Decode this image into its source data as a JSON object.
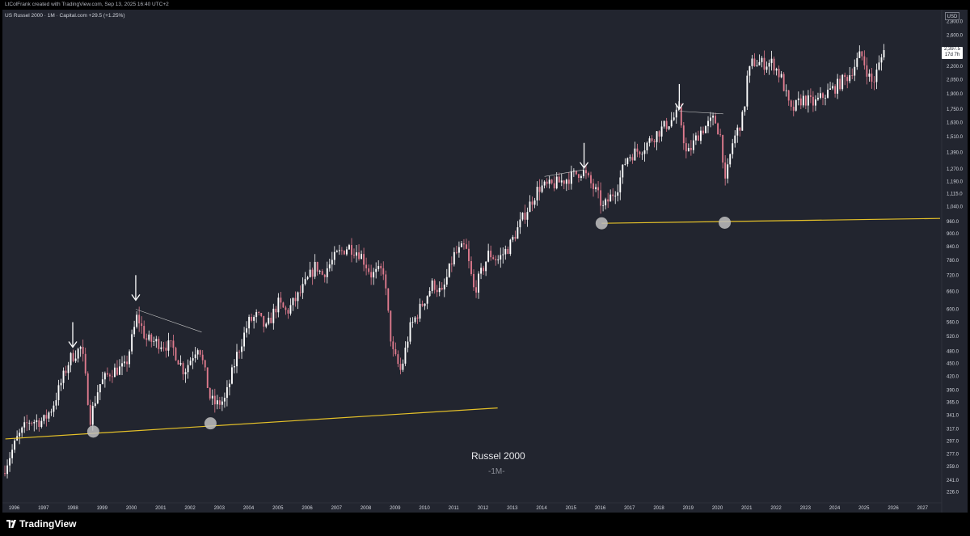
{
  "header": {
    "credit": "LtColFrank created with TradingView.com, Sep 13, 2025 16:40 UTC+2",
    "symbol_line": "US Russel 2000 · 1M · Capital.com  +29.5 (+1.25%)"
  },
  "footer": {
    "brand": "TradingView"
  },
  "axis": {
    "currency": "USD",
    "last_price": "2,397.5",
    "countdown": "17d 7h"
  },
  "annotation": {
    "title": "Russel 2000",
    "subtitle": "-1M-"
  },
  "colors": {
    "background": "#22252f",
    "up_candle": "#ffffff",
    "down_candle": "#e07b8e",
    "trendline": "#e6c229",
    "touch_marker": "#bfbfbf",
    "arrow": "#ffffff",
    "top_line": "#c9c9c9",
    "axis_text": "#d1d4dc"
  },
  "chart_data": {
    "type": "candlestick",
    "scale": "log",
    "interval": "1M",
    "xlim": [
      1995.6,
      2027.6
    ],
    "ylim": [
      215,
      2950
    ],
    "x_ticks": [
      "1996",
      "1997",
      "1998",
      "1999",
      "2000",
      "2001",
      "2002",
      "2003",
      "2004",
      "2005",
      "2006",
      "2007",
      "2008",
      "2009",
      "2010",
      "2011",
      "2012",
      "2013",
      "2014",
      "2015",
      "2016",
      "2017",
      "2018",
      "2019",
      "2020",
      "2021",
      "2022",
      "2023",
      "2024",
      "2025",
      "2026",
      "2027"
    ],
    "y_ticks": [
      "2,800.0",
      "2,600.0",
      "2,400.0",
      "2,200.0",
      "2,050.0",
      "1,900.0",
      "1,750.0",
      "1,630.0",
      "1,510.0",
      "1,390.0",
      "1,270.0",
      "1,190.0",
      "1,115.0",
      "1,040.0",
      "960.0",
      "900.0",
      "840.0",
      "780.0",
      "720.0",
      "660.0",
      "600.0",
      "560.0",
      "520.0",
      "480.0",
      "450.0",
      "420.0",
      "390.0",
      "365.0",
      "341.0",
      "317.0",
      "297.0",
      "277.0",
      "259.0",
      "241.0",
      "226.0"
    ],
    "anchors": [
      [
        1995.6,
        250
      ],
      [
        1996.1,
        300
      ],
      [
        1996.5,
        330
      ],
      [
        1997.0,
        330
      ],
      [
        1997.3,
        355
      ],
      [
        1997.9,
        460
      ],
      [
        1998.3,
        490
      ],
      [
        1998.6,
        335
      ],
      [
        1998.9,
        400
      ],
      [
        1999.3,
        430
      ],
      [
        1999.8,
        440
      ],
      [
        2000.2,
        580
      ],
      [
        2000.5,
        510
      ],
      [
        2001.0,
        500
      ],
      [
        2001.4,
        490
      ],
      [
        2001.8,
        430
      ],
      [
        2002.3,
        500
      ],
      [
        2002.7,
        370
      ],
      [
        2002.9,
        360
      ],
      [
        2003.2,
        370
      ],
      [
        2003.6,
        470
      ],
      [
        2004.0,
        560
      ],
      [
        2004.3,
        580
      ],
      [
        2004.6,
        540
      ],
      [
        2005.0,
        620
      ],
      [
        2005.3,
        590
      ],
      [
        2005.8,
        660
      ],
      [
        2006.3,
        760
      ],
      [
        2006.5,
        720
      ],
      [
        2007.0,
        800
      ],
      [
        2007.4,
        840
      ],
      [
        2007.8,
        810
      ],
      [
        2008.2,
        720
      ],
      [
        2008.6,
        740
      ],
      [
        2008.9,
        480
      ],
      [
        2009.2,
        430
      ],
      [
        2009.5,
        540
      ],
      [
        2010.0,
        630
      ],
      [
        2010.3,
        690
      ],
      [
        2010.6,
        650
      ],
      [
        2011.0,
        800
      ],
      [
        2011.4,
        840
      ],
      [
        2011.7,
        660
      ],
      [
        2012.2,
        810
      ],
      [
        2012.5,
        780
      ],
      [
        2012.9,
        840
      ],
      [
        2013.4,
        990
      ],
      [
        2013.9,
        1150
      ],
      [
        2014.3,
        1160
      ],
      [
        2014.8,
        1200
      ],
      [
        2015.4,
        1260
      ],
      [
        2015.9,
        1110
      ],
      [
        2016.1,
        1030
      ],
      [
        2016.6,
        1160
      ],
      [
        2016.9,
        1350
      ],
      [
        2017.5,
        1430
      ],
      [
        2017.9,
        1530
      ],
      [
        2018.4,
        1640
      ],
      [
        2018.7,
        1720
      ],
      [
        2018.95,
        1360
      ],
      [
        2019.4,
        1550
      ],
      [
        2019.9,
        1660
      ],
      [
        2020.15,
        1480
      ],
      [
        2020.25,
        1150
      ],
      [
        2020.5,
        1450
      ],
      [
        2020.9,
        1700
      ],
      [
        2021.0,
        2050
      ],
      [
        2021.2,
        2250
      ],
      [
        2021.6,
        2230
      ],
      [
        2021.9,
        2240
      ],
      [
        2022.2,
        2050
      ],
      [
        2022.5,
        1720
      ],
      [
        2022.9,
        1850
      ],
      [
        2023.3,
        1800
      ],
      [
        2023.7,
        1900
      ],
      [
        2024.0,
        1960
      ],
      [
        2024.5,
        2100
      ],
      [
        2024.9,
        2350
      ],
      [
        2025.2,
        2060
      ],
      [
        2025.3,
        2000
      ],
      [
        2025.6,
        2300
      ],
      [
        2025.7,
        2397.5
      ]
    ],
    "trendlines": [
      {
        "from": [
          1995.7,
          300
        ],
        "to": [
          2012.5,
          354
        ]
      },
      {
        "from": [
          2016.05,
          950
        ],
        "to": [
          2027.6,
          975
        ]
      }
    ],
    "touch_points": [
      [
        1998.7,
        312
      ],
      [
        2002.7,
        326
      ],
      [
        2016.05,
        950
      ],
      [
        2020.25,
        953
      ]
    ],
    "top_lines": [
      [
        [
          1997.9,
          462
        ],
        [
          2098.4,
          0
        ]
      ],
      [
        [
          2000.15,
          600
        ],
        [
          2002.4,
          531
        ]
      ],
      [
        [
          2014.1,
          1220
        ],
        [
          2015.45,
          1265
        ]
      ],
      [
        [
          2018.7,
          1730
        ],
        [
          2020.2,
          1705
        ]
      ]
    ],
    "arrows": [
      [
        1998.0,
        560
      ],
      [
        2000.15,
        720
      ],
      [
        2015.45,
        1460
      ],
      [
        2018.7,
        2000
      ]
    ],
    "last_price": 2397.5
  }
}
